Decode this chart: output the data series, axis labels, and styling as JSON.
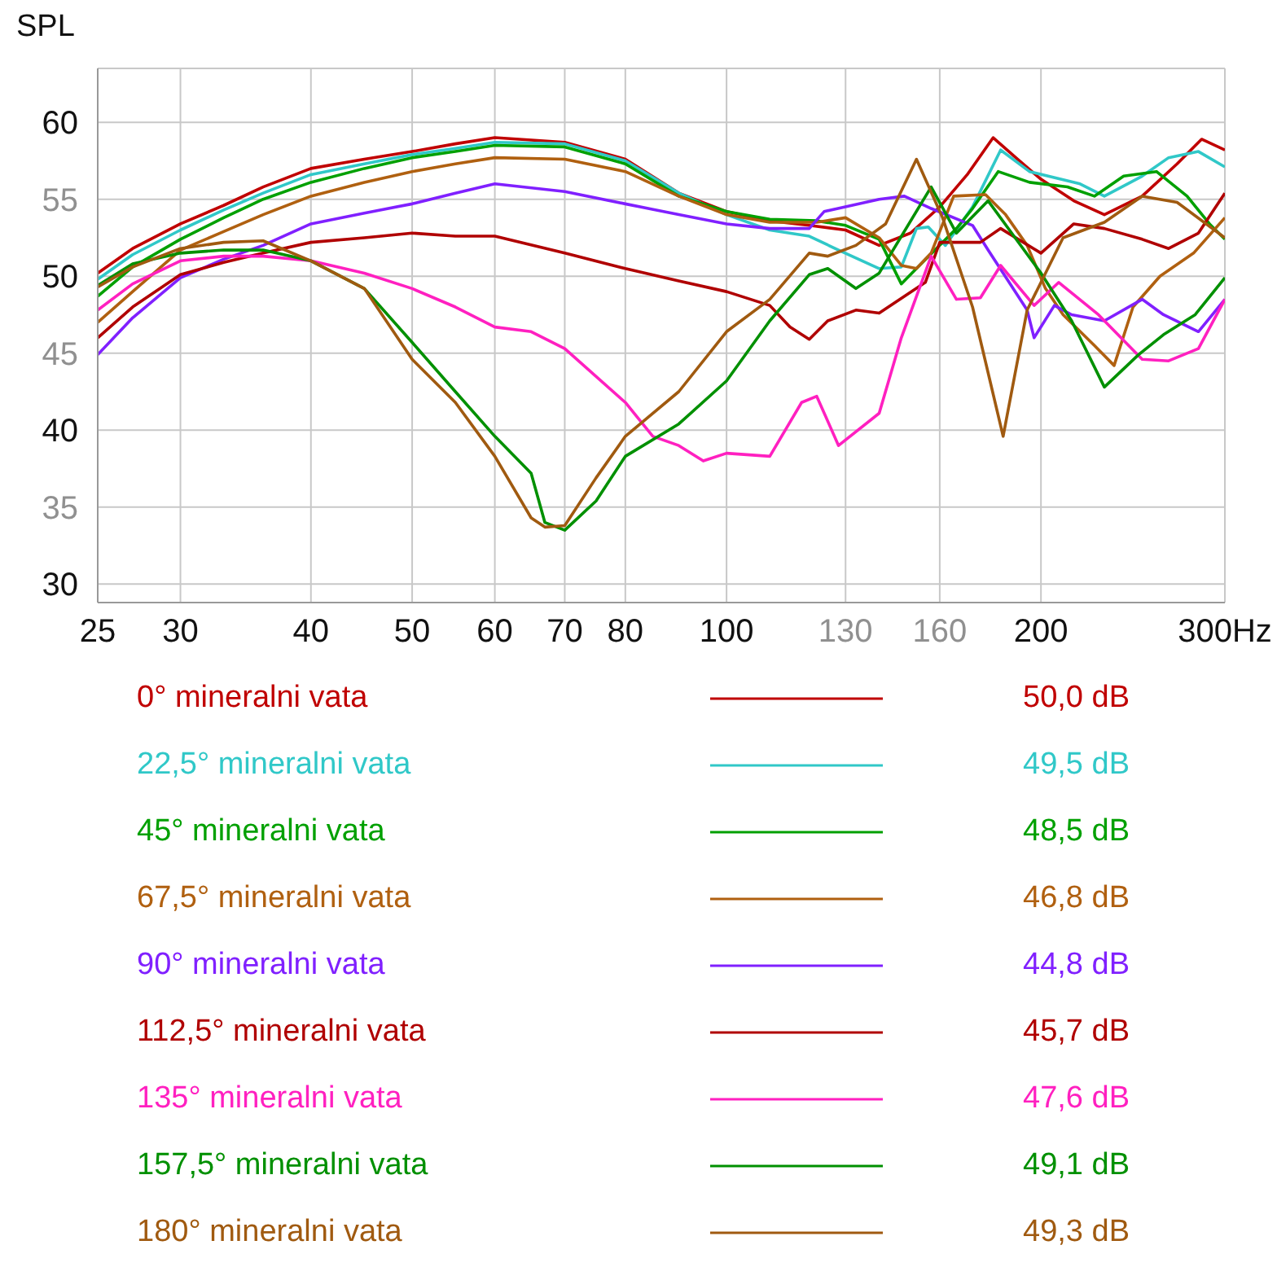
{
  "chart_data": {
    "type": "line",
    "ylabel": "SPL",
    "xlim": [
      25,
      300
    ],
    "xticks": [
      25,
      30,
      40,
      50,
      60,
      70,
      80,
      100,
      130,
      160,
      200,
      {
        "value": 300,
        "label": "300Hz"
      }
    ],
    "ylim": [
      28.8,
      63.5
    ],
    "yticks": [
      30,
      35,
      40,
      45,
      50,
      55,
      60
    ],
    "log": "x",
    "grid": true,
    "legend": "bottom",
    "marker": "none",
    "line_style": "solid",
    "annotations": [
      "50,0 dB",
      "49,5 dB",
      "48,5 dB",
      "46,8 dB",
      "44,8 dB",
      "45,7 dB",
      "47,6 dB",
      "49,1 dB",
      "49,3 dB"
    ],
    "series": [
      {
        "name": "0° mineralni vata",
        "color": "#c00000",
        "x": [
          25,
          27,
          30,
          33,
          36,
          40,
          45,
          50,
          55,
          60,
          70,
          80,
          90,
          100,
          110,
          120,
          130,
          140,
          150,
          160,
          170,
          180,
          190,
          200,
          215,
          230,
          250,
          270,
          285,
          300
        ],
        "values": [
          50.2,
          51.8,
          53.4,
          54.6,
          55.8,
          57.0,
          57.6,
          58.1,
          58.6,
          59.0,
          58.7,
          57.6,
          55.4,
          54.2,
          53.6,
          53.3,
          53.0,
          52.0,
          52.8,
          54.5,
          56.6,
          59.0,
          57.6,
          56.3,
          54.9,
          54.0,
          55.2,
          57.3,
          58.9,
          58.2
        ]
      },
      {
        "name": "22,5° mineralni vata",
        "color": "#30c8c8",
        "x": [
          25,
          27,
          30,
          33,
          36,
          40,
          45,
          50,
          55,
          60,
          70,
          80,
          90,
          100,
          110,
          120,
          128,
          140,
          147,
          152,
          156,
          162,
          172,
          183,
          195,
          218,
          230,
          250,
          265,
          283,
          300
        ],
        "values": [
          49.8,
          51.4,
          53.0,
          54.3,
          55.4,
          56.6,
          57.3,
          57.9,
          58.3,
          58.7,
          58.6,
          57.5,
          55.4,
          54.0,
          53.0,
          52.6,
          51.7,
          50.5,
          50.6,
          53.1,
          53.2,
          52.0,
          54.5,
          58.2,
          56.8,
          56.0,
          55.2,
          56.5,
          57.7,
          58.1,
          57.1
        ]
      },
      {
        "name": "45° mineralni vata",
        "color": "#00a000",
        "x": [
          25,
          27,
          30,
          33,
          36,
          40,
          45,
          50,
          55,
          60,
          70,
          80,
          90,
          100,
          110,
          122,
          130,
          140,
          147,
          152,
          166,
          172,
          182,
          195,
          212,
          225,
          240,
          258,
          276,
          290,
          300
        ],
        "values": [
          48.7,
          50.6,
          52.4,
          53.8,
          55.0,
          56.1,
          57.0,
          57.7,
          58.1,
          58.5,
          58.4,
          57.3,
          55.2,
          54.2,
          53.7,
          53.6,
          53.3,
          52.4,
          49.5,
          50.5,
          53.1,
          54.4,
          56.8,
          56.1,
          55.8,
          55.2,
          56.5,
          56.8,
          55.2,
          53.4,
          52.4
        ]
      },
      {
        "name": "67,5° mineralni vata",
        "color": "#b06010",
        "x": [
          25,
          27,
          30,
          33,
          36,
          40,
          45,
          50,
          55,
          60,
          70,
          80,
          90,
          100,
          110,
          122,
          130,
          140,
          147,
          152,
          157,
          165,
          177,
          185,
          194,
          202,
          210,
          225,
          235,
          245,
          260,
          280,
          300
        ],
        "values": [
          47.0,
          49.0,
          51.7,
          52.9,
          54.0,
          55.2,
          56.1,
          56.8,
          57.3,
          57.7,
          57.6,
          56.8,
          55.2,
          54.0,
          53.5,
          53.5,
          53.8,
          52.5,
          50.7,
          50.5,
          51.5,
          55.2,
          55.3,
          54.0,
          52.0,
          49.2,
          47.5,
          45.5,
          44.2,
          48.0,
          50.0,
          51.5,
          53.8
        ]
      },
      {
        "name": "90° mineralni vata",
        "color": "#8020ff",
        "x": [
          25,
          27,
          30,
          33,
          36,
          40,
          45,
          50,
          55,
          60,
          70,
          80,
          90,
          100,
          110,
          120,
          124,
          140,
          148,
          157,
          172,
          178,
          194,
          197,
          206,
          214,
          230,
          250,
          262,
          283,
          300
        ],
        "values": [
          44.9,
          47.3,
          49.9,
          51.1,
          52.0,
          53.4,
          54.1,
          54.7,
          55.4,
          56.0,
          55.5,
          54.7,
          54.0,
          53.4,
          53.1,
          53.1,
          54.2,
          55.0,
          55.2,
          54.4,
          53.3,
          51.7,
          47.8,
          46.0,
          48.1,
          47.5,
          47.1,
          48.5,
          47.5,
          46.4,
          48.5
        ]
      },
      {
        "name": "112,5° mineralni vata",
        "color": "#b00000",
        "x": [
          25,
          27,
          30,
          33,
          36,
          40,
          45,
          50,
          55,
          60,
          70,
          80,
          90,
          100,
          110,
          115,
          120,
          125,
          133,
          140,
          155,
          160,
          175,
          183,
          200,
          215,
          230,
          250,
          265,
          283,
          300
        ],
        "values": [
          46.0,
          48.0,
          50.1,
          50.9,
          51.5,
          52.2,
          52.5,
          52.8,
          52.6,
          52.6,
          51.5,
          50.5,
          49.7,
          49.0,
          48.1,
          46.7,
          45.9,
          47.1,
          47.8,
          47.6,
          49.6,
          52.2,
          52.2,
          53.1,
          51.5,
          53.4,
          53.1,
          52.4,
          51.8,
          52.8,
          55.4
        ]
      },
      {
        "name": "135° mineralni vata",
        "color": "#ff20c0",
        "x": [
          25,
          27,
          30,
          33,
          36,
          40,
          45,
          50,
          55,
          60,
          65,
          70,
          80,
          85,
          90,
          95,
          100,
          110,
          118,
          122,
          128,
          140,
          147,
          157,
          166,
          175,
          183,
          197,
          208,
          227,
          250,
          265,
          283,
          300
        ],
        "values": [
          47.8,
          49.5,
          51.0,
          51.3,
          51.3,
          51.0,
          50.2,
          49.2,
          48.0,
          46.7,
          46.4,
          45.3,
          41.8,
          39.6,
          39.0,
          38.0,
          38.5,
          38.3,
          41.8,
          42.2,
          39.0,
          41.1,
          46.0,
          51.3,
          48.5,
          48.6,
          50.7,
          48.1,
          49.6,
          47.5,
          44.6,
          44.5,
          45.3,
          48.5
        ]
      },
      {
        "name": "157,5° mineralni vata",
        "color": "#009000",
        "x": [
          25,
          27,
          30,
          33,
          36,
          40,
          45,
          50,
          55,
          60,
          65,
          67,
          70,
          75,
          80,
          90,
          100,
          110,
          120,
          125,
          133,
          140,
          157,
          166,
          178,
          200,
          214,
          230,
          248,
          262,
          281,
          300
        ],
        "values": [
          49.4,
          50.8,
          51.5,
          51.7,
          51.7,
          51.0,
          49.2,
          45.7,
          42.5,
          39.6,
          37.2,
          34.0,
          33.5,
          35.4,
          38.3,
          40.4,
          43.2,
          47.1,
          50.1,
          50.5,
          49.2,
          50.2,
          55.8,
          52.8,
          54.9,
          50.2,
          47.1,
          42.8,
          44.9,
          46.2,
          47.5,
          49.9
        ]
      },
      {
        "name": "180° mineralni vata",
        "color": "#a05a10",
        "x": [
          25,
          27,
          30,
          33,
          36,
          40,
          45,
          50,
          55,
          60,
          65,
          67,
          70,
          75,
          80,
          90,
          100,
          110,
          120,
          125,
          133,
          142,
          152,
          161,
          172,
          184,
          194,
          200,
          210,
          230,
          250,
          270,
          300
        ],
        "values": [
          49.3,
          50.6,
          51.8,
          52.2,
          52.3,
          51.0,
          49.2,
          44.6,
          41.8,
          38.3,
          34.3,
          33.7,
          33.8,
          36.9,
          39.6,
          42.5,
          46.4,
          48.5,
          51.5,
          51.3,
          52.0,
          53.4,
          57.6,
          53.8,
          48.0,
          39.6,
          47.8,
          49.6,
          52.5,
          53.5,
          55.2,
          54.8,
          52.5
        ]
      }
    ]
  }
}
